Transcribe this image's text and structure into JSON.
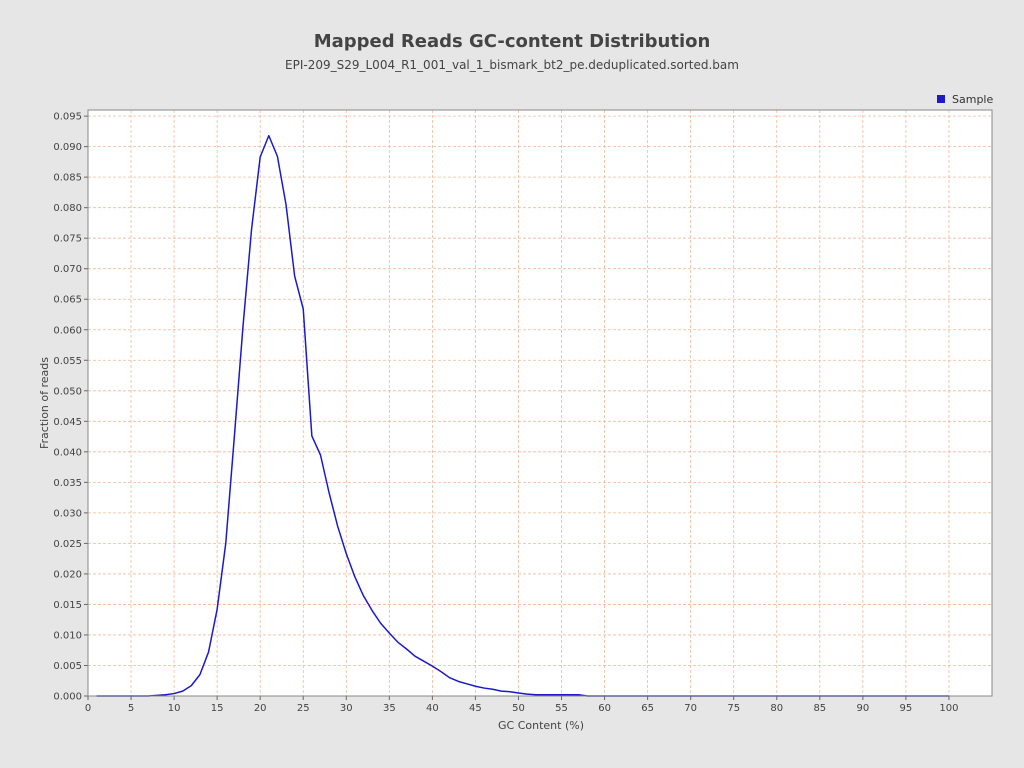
{
  "chart_data": {
    "type": "line",
    "title": "Mapped Reads GC-content Distribution",
    "subtitle": "EPI-209_S29_L004_R1_001_val_1_bismark_bt2_pe.deduplicated.sorted.bam",
    "xlabel": "GC Content (%)",
    "ylabel": "Fraction of reads",
    "xlim": [
      0,
      105
    ],
    "ylim": [
      0,
      0.096
    ],
    "xticks": [
      "0",
      "5",
      "10",
      "15",
      "20",
      "25",
      "30",
      "35",
      "40",
      "45",
      "50",
      "55",
      "60",
      "65",
      "70",
      "75",
      "80",
      "85",
      "90",
      "95",
      "100"
    ],
    "yticks": [
      "0.000",
      "0.005",
      "0.010",
      "0.015",
      "0.020",
      "0.025",
      "0.030",
      "0.035",
      "0.040",
      "0.045",
      "0.050",
      "0.055",
      "0.060",
      "0.065",
      "0.070",
      "0.075",
      "0.080",
      "0.085",
      "0.090",
      "0.095"
    ],
    "grid": true,
    "legend": "top-right",
    "colors": {
      "series": "#1a1acc",
      "grid": "#f0b898",
      "plot_bg": "#ffffff",
      "page_bg": "#e6e6e6"
    },
    "series": [
      {
        "name": "Sample",
        "x": [
          1,
          2,
          3,
          4,
          5,
          6,
          7,
          8,
          9,
          10,
          11,
          12,
          13,
          14,
          15,
          16,
          17,
          18,
          19,
          20,
          21,
          22,
          23,
          24,
          25,
          26,
          27,
          28,
          29,
          30,
          31,
          32,
          33,
          34,
          35,
          36,
          37,
          38,
          39,
          40,
          41,
          42,
          43,
          44,
          45,
          46,
          47,
          48,
          49,
          50,
          51,
          52,
          53,
          54,
          55,
          56,
          57,
          58,
          60,
          65,
          70,
          75,
          80,
          85,
          90,
          95,
          100
        ],
        "y": [
          0,
          0,
          0,
          0,
          0,
          0,
          0,
          0.0001,
          0.0002,
          0.0004,
          0.0008,
          0.0017,
          0.0035,
          0.0072,
          0.0142,
          0.025,
          0.0425,
          0.0605,
          0.0765,
          0.0883,
          0.0918,
          0.0884,
          0.0805,
          0.0688,
          0.0634,
          0.0426,
          0.0395,
          0.0333,
          0.0278,
          0.0233,
          0.0195,
          0.0164,
          0.014,
          0.0119,
          0.0103,
          0.0088,
          0.0077,
          0.0065,
          0.0057,
          0.0049,
          0.004,
          0.003,
          0.0024,
          0.002,
          0.0016,
          0.0013,
          0.0011,
          0.0008,
          0.0007,
          0.0005,
          0.0003,
          0.0002,
          0.0002,
          0.0002,
          0.0002,
          0.0002,
          0.0002,
          0,
          0,
          0,
          0,
          0,
          0,
          0,
          0,
          0,
          0
        ]
      }
    ]
  }
}
